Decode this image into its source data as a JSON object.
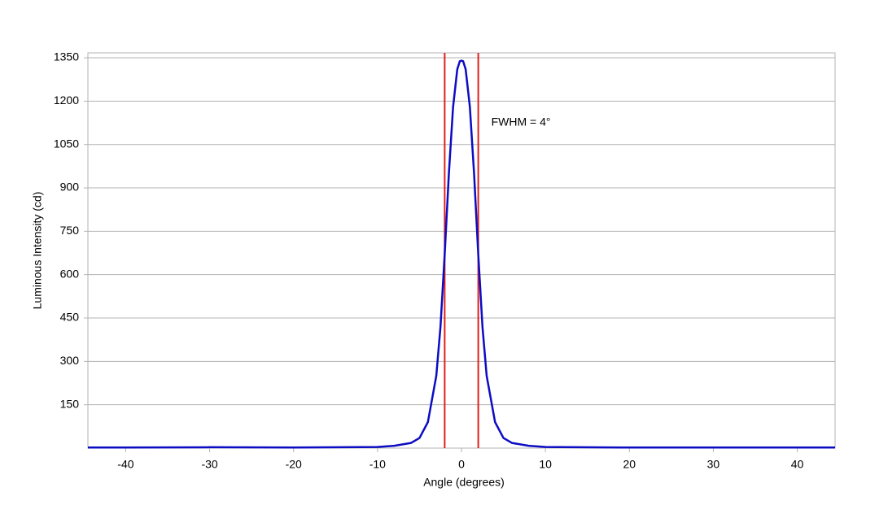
{
  "chart_data": {
    "type": "line",
    "xlabel": "Angle (degrees)",
    "ylabel": "Luminous Intensity (cd)",
    "annotation": "FWHM = 4°",
    "x": [
      -44.5,
      -40,
      -30,
      -20,
      -10,
      -8,
      -6,
      -5,
      -4,
      -3,
      -2.5,
      -2,
      -1.5,
      -1,
      -0.5,
      -0.2,
      0,
      0.2,
      0.5,
      1,
      1.5,
      2,
      2.5,
      3,
      4,
      5,
      6,
      8,
      10,
      20,
      30,
      40,
      44.5
    ],
    "values": [
      2,
      2,
      3,
      2,
      4,
      8,
      18,
      35,
      90,
      250,
      420,
      670,
      950,
      1180,
      1310,
      1338,
      1340,
      1338,
      1310,
      1180,
      950,
      670,
      420,
      250,
      90,
      35,
      18,
      8,
      4,
      2,
      2,
      2,
      2
    ],
    "color": "#0c0cc4",
    "vlines": [
      -2,
      2
    ],
    "vline_color": "#e0201c",
    "xlim": [
      -44.5,
      44.5
    ],
    "xticks": [
      -40,
      -30,
      -20,
      -10,
      0,
      10,
      20,
      30,
      40
    ],
    "ylim": [
      0,
      1367
    ],
    "yticks": [
      150,
      300,
      450,
      600,
      750,
      900,
      1050,
      1200,
      1350
    ],
    "grid": true
  }
}
